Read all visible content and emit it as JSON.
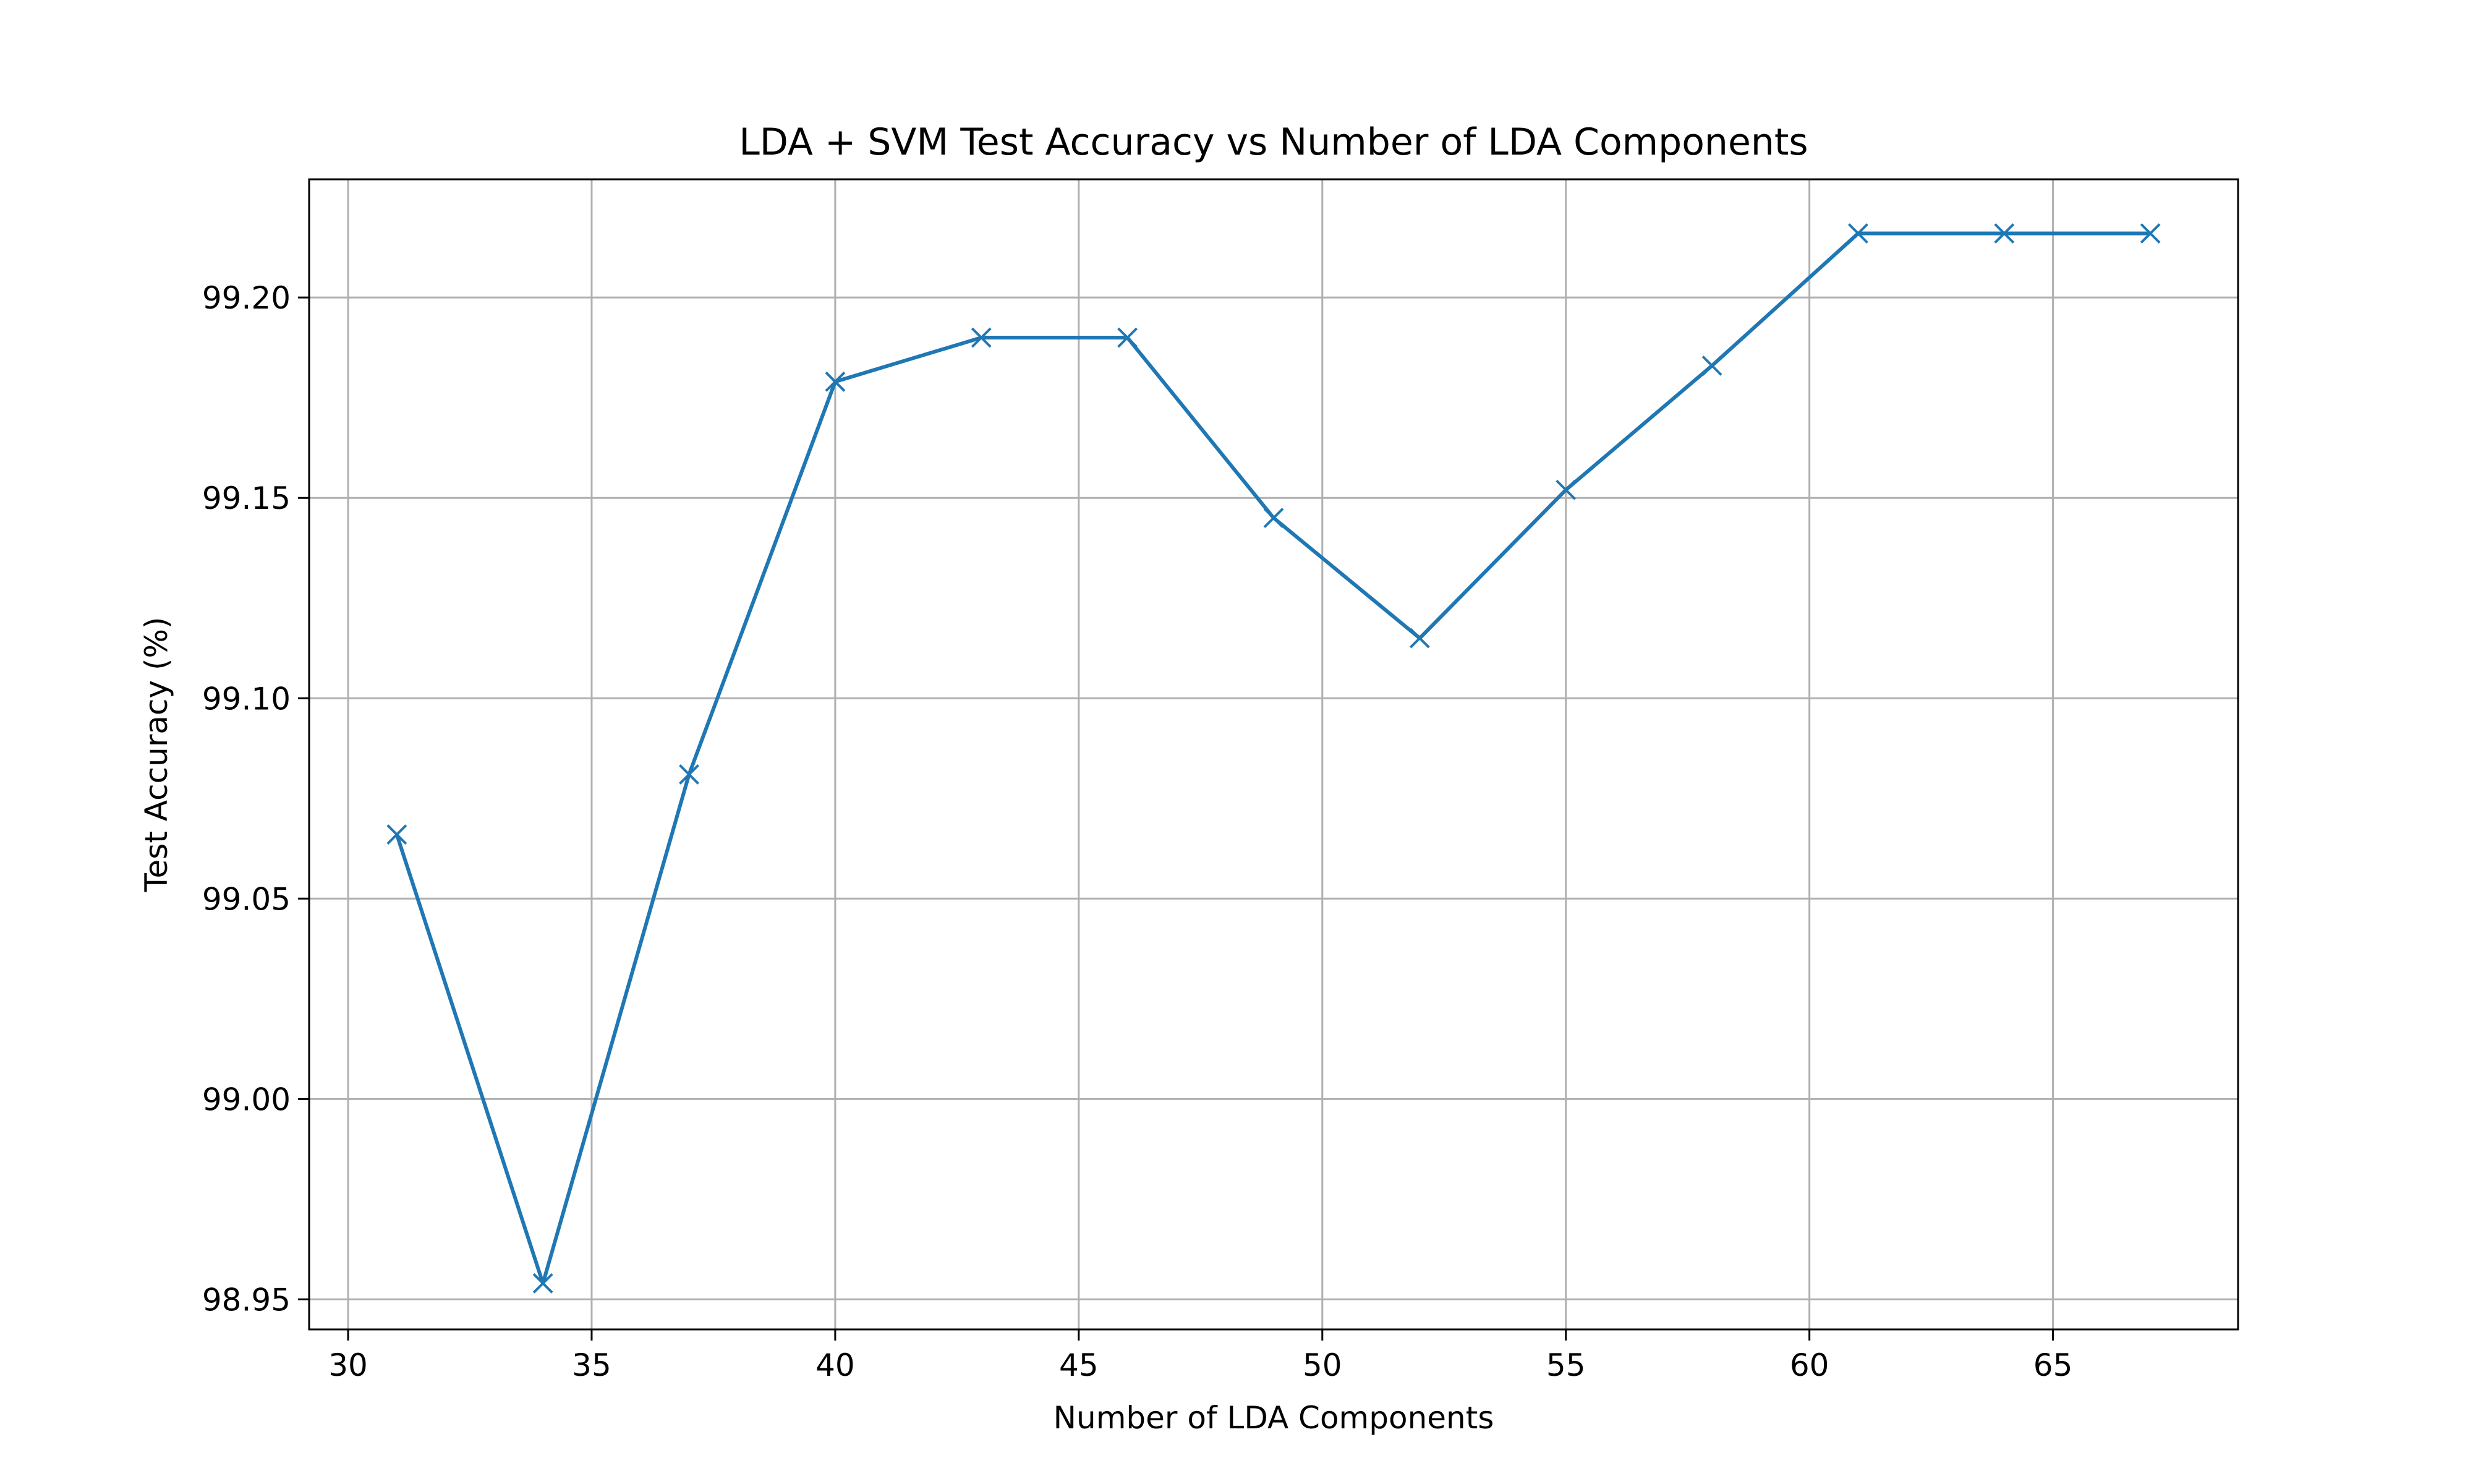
{
  "chart_data": {
    "type": "line",
    "title": "LDA + SVM Test Accuracy vs Number of LDA Components",
    "xlabel": "Number of LDA Components",
    "ylabel": "Test Accuracy (%)",
    "xlim": [
      29.2,
      68.8
    ],
    "ylim": [
      98.9425,
      99.2295
    ],
    "xticks": [
      30,
      35,
      40,
      45,
      50,
      55,
      60,
      65
    ],
    "xtick_labels": [
      "30",
      "35",
      "40",
      "45",
      "50",
      "55",
      "60",
      "65"
    ],
    "yticks": [
      98.95,
      99.0,
      99.05,
      99.1,
      99.15,
      99.2
    ],
    "ytick_labels": [
      "98.95",
      "99.00",
      "99.05",
      "99.10",
      "99.15",
      "99.20"
    ],
    "grid": true,
    "marker": "x",
    "series": [
      {
        "color": "#1f77b4",
        "x": [
          31,
          34,
          37,
          40,
          43,
          46,
          49,
          52,
          55,
          58,
          61,
          64,
          67
        ],
        "y": [
          99.066,
          98.954,
          99.081,
          99.179,
          99.19,
          99.19,
          99.145,
          99.115,
          99.152,
          99.183,
          99.216,
          99.216,
          99.216
        ]
      }
    ]
  }
}
